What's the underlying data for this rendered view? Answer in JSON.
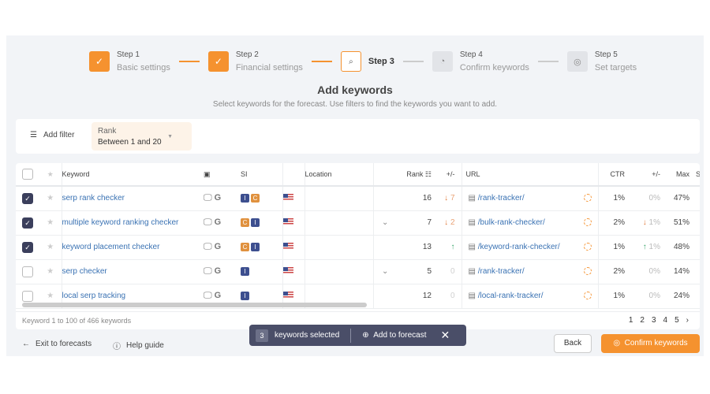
{
  "steps": [
    {
      "label": "Step 1",
      "sub": "Basic settings",
      "state": "done"
    },
    {
      "label": "Step 2",
      "sub": "Financial settings",
      "state": "done"
    },
    {
      "label": "Step 3",
      "sub": "",
      "state": "current"
    },
    {
      "label": "Step 4",
      "sub": "Confirm keywords",
      "state": "todo"
    },
    {
      "label": "Step 5",
      "sub": "Set targets",
      "state": "todo"
    }
  ],
  "title": "Add keywords",
  "subtitle": "Select keywords for the forecast. Use filters to find the keywords you want to add.",
  "filter": {
    "add_label": "Add filter",
    "chip_label": "Rank",
    "chip_value": "Between 1 and 20"
  },
  "table": {
    "headers": {
      "keyword": "Keyword",
      "si": "SI",
      "location": "Location",
      "rank": "Rank",
      "diff": "+/-",
      "url": "URL",
      "ctr": "CTR",
      "ctr_diff": "+/-",
      "max": "Max",
      "s": "S"
    },
    "rows": [
      {
        "checked": true,
        "keyword": "serp rank checker",
        "si": [
          "I",
          "C"
        ],
        "expand": false,
        "rank": "16",
        "rank_dir": "down",
        "rank_diff": "7",
        "url": "/rank-tracker/",
        "ctr": "1%",
        "ctr_dir": "",
        "ctr_diff": "0%",
        "max": "47%"
      },
      {
        "checked": true,
        "keyword": "multiple keyword ranking checker",
        "si": [
          "C",
          "I"
        ],
        "expand": true,
        "rank": "7",
        "rank_dir": "down",
        "rank_diff": "2",
        "url": "/bulk-rank-checker/",
        "ctr": "2%",
        "ctr_dir": "down",
        "ctr_diff": "1%",
        "max": "51%"
      },
      {
        "checked": true,
        "keyword": "keyword placement checker",
        "si": [
          "C",
          "I"
        ],
        "expand": false,
        "rank": "13",
        "rank_dir": "up",
        "rank_diff": "",
        "url": "/keyword-rank-checker/",
        "ctr": "1%",
        "ctr_dir": "up",
        "ctr_diff": "1%",
        "max": "48%"
      },
      {
        "checked": false,
        "keyword": "serp checker",
        "si": [
          "I"
        ],
        "expand": true,
        "rank": "5",
        "rank_dir": "",
        "rank_diff": "0",
        "url": "/rank-tracker/",
        "ctr": "2%",
        "ctr_dir": "",
        "ctr_diff": "0%",
        "max": "14%"
      },
      {
        "checked": false,
        "keyword": "local serp tracking",
        "si": [
          "I"
        ],
        "expand": false,
        "rank": "12",
        "rank_dir": "",
        "rank_diff": "0",
        "url": "/local-rank-tracker/",
        "ctr": "1%",
        "ctr_dir": "",
        "ctr_diff": "0%",
        "max": "24%"
      }
    ],
    "footer": "Keyword 1 to 100 of 466 keywords",
    "pages": [
      "1",
      "2",
      "3",
      "4",
      "5"
    ]
  },
  "bottom": {
    "exit": "Exit to forecasts",
    "help": "Help guide",
    "back": "Back",
    "confirm": "Confirm keywords"
  },
  "toast": {
    "count": "3",
    "text": "keywords selected",
    "add": "Add to forecast"
  },
  "colors": {
    "accent": "#f5922f",
    "link": "#3a72b3",
    "toast": "#4a4e68"
  }
}
